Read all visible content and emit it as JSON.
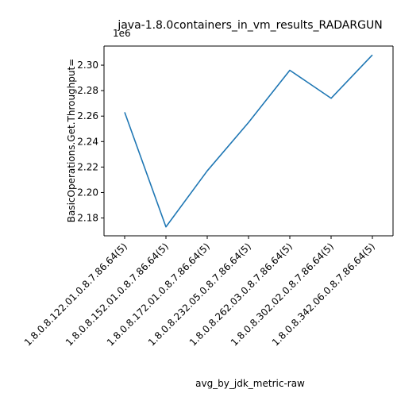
{
  "chart_data": {
    "type": "line",
    "title": "java-1.8.0containers_in_vm_results_RADARGUN",
    "xlabel": "avg_by_jdk_metric-raw",
    "ylabel": "BasicOperations.Get.Throughput=",
    "y_offset_label": "1e6",
    "y_scale": 1000000,
    "categories": [
      "1.8.0.8.122.01.0.8.7.86.64(5)",
      "1.8.0.8.152.01.0.8.7.86.64(5)",
      "1.8.0.8.172.01.0.8.7.86.64(5)",
      "1.8.0.8.232.05.0.8.7.86.64(5)",
      "1.8.0.8.262.03.0.8.7.86.64(5)",
      "1.8.0.8.302.02.0.8.7.86.64(5)",
      "1.8.0.8.342.06.0.8.7.86.64(5)"
    ],
    "series": [
      {
        "values": [
          2263000,
          2173000,
          2217000,
          2255000,
          2296000,
          2274000,
          2308000
        ],
        "color": "#1f77b4"
      }
    ],
    "yticks": [
      2180000,
      2200000,
      2220000,
      2240000,
      2260000,
      2280000,
      2300000
    ],
    "ytick_labels": [
      "2.18",
      "2.20",
      "2.22",
      "2.24",
      "2.26",
      "2.28",
      "2.30"
    ],
    "ylim": [
      2166000,
      2315000
    ],
    "grid": false,
    "legend": false
  }
}
